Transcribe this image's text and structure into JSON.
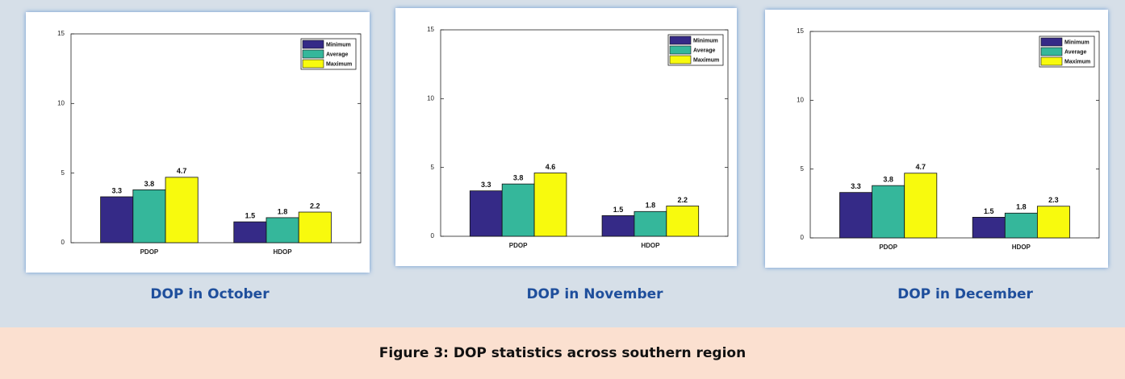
{
  "caption": "Figure 3: DOP statistics across southern region",
  "chart_data": [
    {
      "type": "bar",
      "title": "DOP in October",
      "categories": [
        "PDOP",
        "HDOP"
      ],
      "series": [
        {
          "name": "Minimum",
          "color": "#352a87",
          "values": [
            3.3,
            1.5
          ]
        },
        {
          "name": "Average",
          "color": "#35b79b",
          "values": [
            3.8,
            1.8
          ]
        },
        {
          "name": "Maximum",
          "color": "#f8fa0d",
          "values": [
            4.7,
            2.2
          ]
        }
      ],
      "ylim": [
        0,
        15
      ],
      "yticks": [
        0,
        5,
        10,
        15
      ],
      "grid": false,
      "legend": "top-right"
    },
    {
      "type": "bar",
      "title": "DOP in November",
      "categories": [
        "PDOP",
        "HDOP"
      ],
      "series": [
        {
          "name": "Minimum",
          "color": "#352a87",
          "values": [
            3.3,
            1.5
          ]
        },
        {
          "name": "Average",
          "color": "#35b79b",
          "values": [
            3.8,
            1.8
          ]
        },
        {
          "name": "Maximum",
          "color": "#f8fa0d",
          "values": [
            4.6,
            2.2
          ]
        }
      ],
      "ylim": [
        0,
        15
      ],
      "yticks": [
        0,
        5,
        10,
        15
      ],
      "grid": false,
      "legend": "top-right"
    },
    {
      "type": "bar",
      "title": "DOP in December",
      "categories": [
        "PDOP",
        "HDOP"
      ],
      "series": [
        {
          "name": "Minimum",
          "color": "#352a87",
          "values": [
            3.3,
            1.5
          ]
        },
        {
          "name": "Average",
          "color": "#35b79b",
          "values": [
            3.8,
            1.8
          ]
        },
        {
          "name": "Maximum",
          "color": "#f8fa0d",
          "values": [
            4.7,
            2.3
          ]
        }
      ],
      "ylim": [
        0,
        15
      ],
      "yticks": [
        0,
        5,
        10,
        15
      ],
      "grid": false,
      "legend": "top-right"
    }
  ]
}
